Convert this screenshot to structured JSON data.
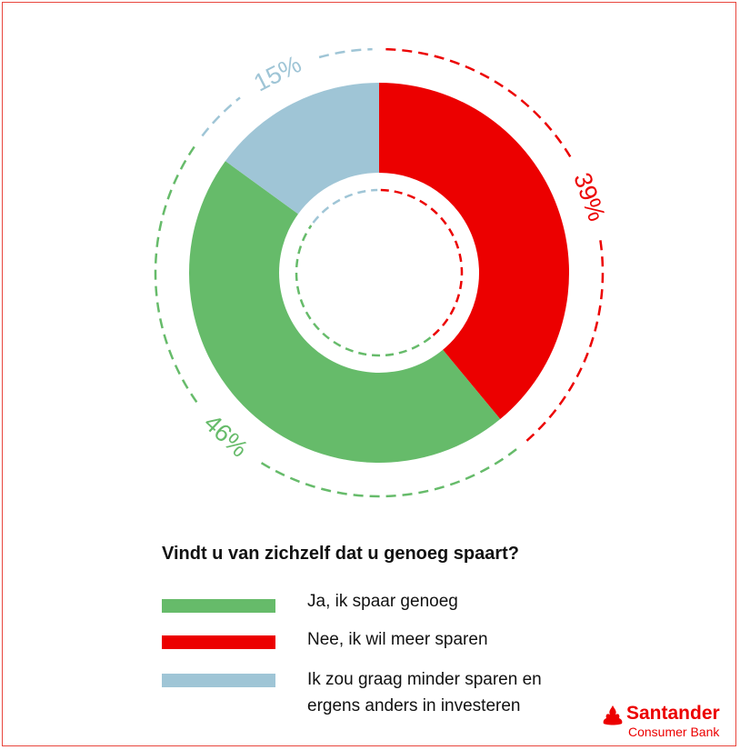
{
  "colors": {
    "green": "#66bb6a",
    "red": "#ec0000",
    "blue": "#9fc5d6",
    "frame": "#e8463d",
    "brand": "#ec0000"
  },
  "chart_data": {
    "type": "pie",
    "title": "Vindt u van zichzelf dat u genoeg spaart?",
    "donut": true,
    "slices": [
      {
        "label": "Nee, ik wil meer sparen",
        "value": 39,
        "display": "39%",
        "color": "#ec0000"
      },
      {
        "label": "Ja, ik spaar genoeg",
        "value": 46,
        "display": "46%",
        "color": "#66bb6a"
      },
      {
        "label": "Ik zou graag minder sparen en ergens anders in investeren",
        "value": 15,
        "display": "15%",
        "color": "#9fc5d6"
      }
    ]
  },
  "legend": [
    {
      "label": "Ja, ik spaar genoeg",
      "color": "#66bb6a"
    },
    {
      "label": "Nee, ik wil meer sparen",
      "color": "#ec0000"
    },
    {
      "label": "Ik zou graag minder sparen en ergens anders in investeren",
      "color": "#9fc5d6"
    }
  ],
  "brand": {
    "name": "Santander",
    "sub": "Consumer Bank",
    "icon": "flame-icon"
  }
}
